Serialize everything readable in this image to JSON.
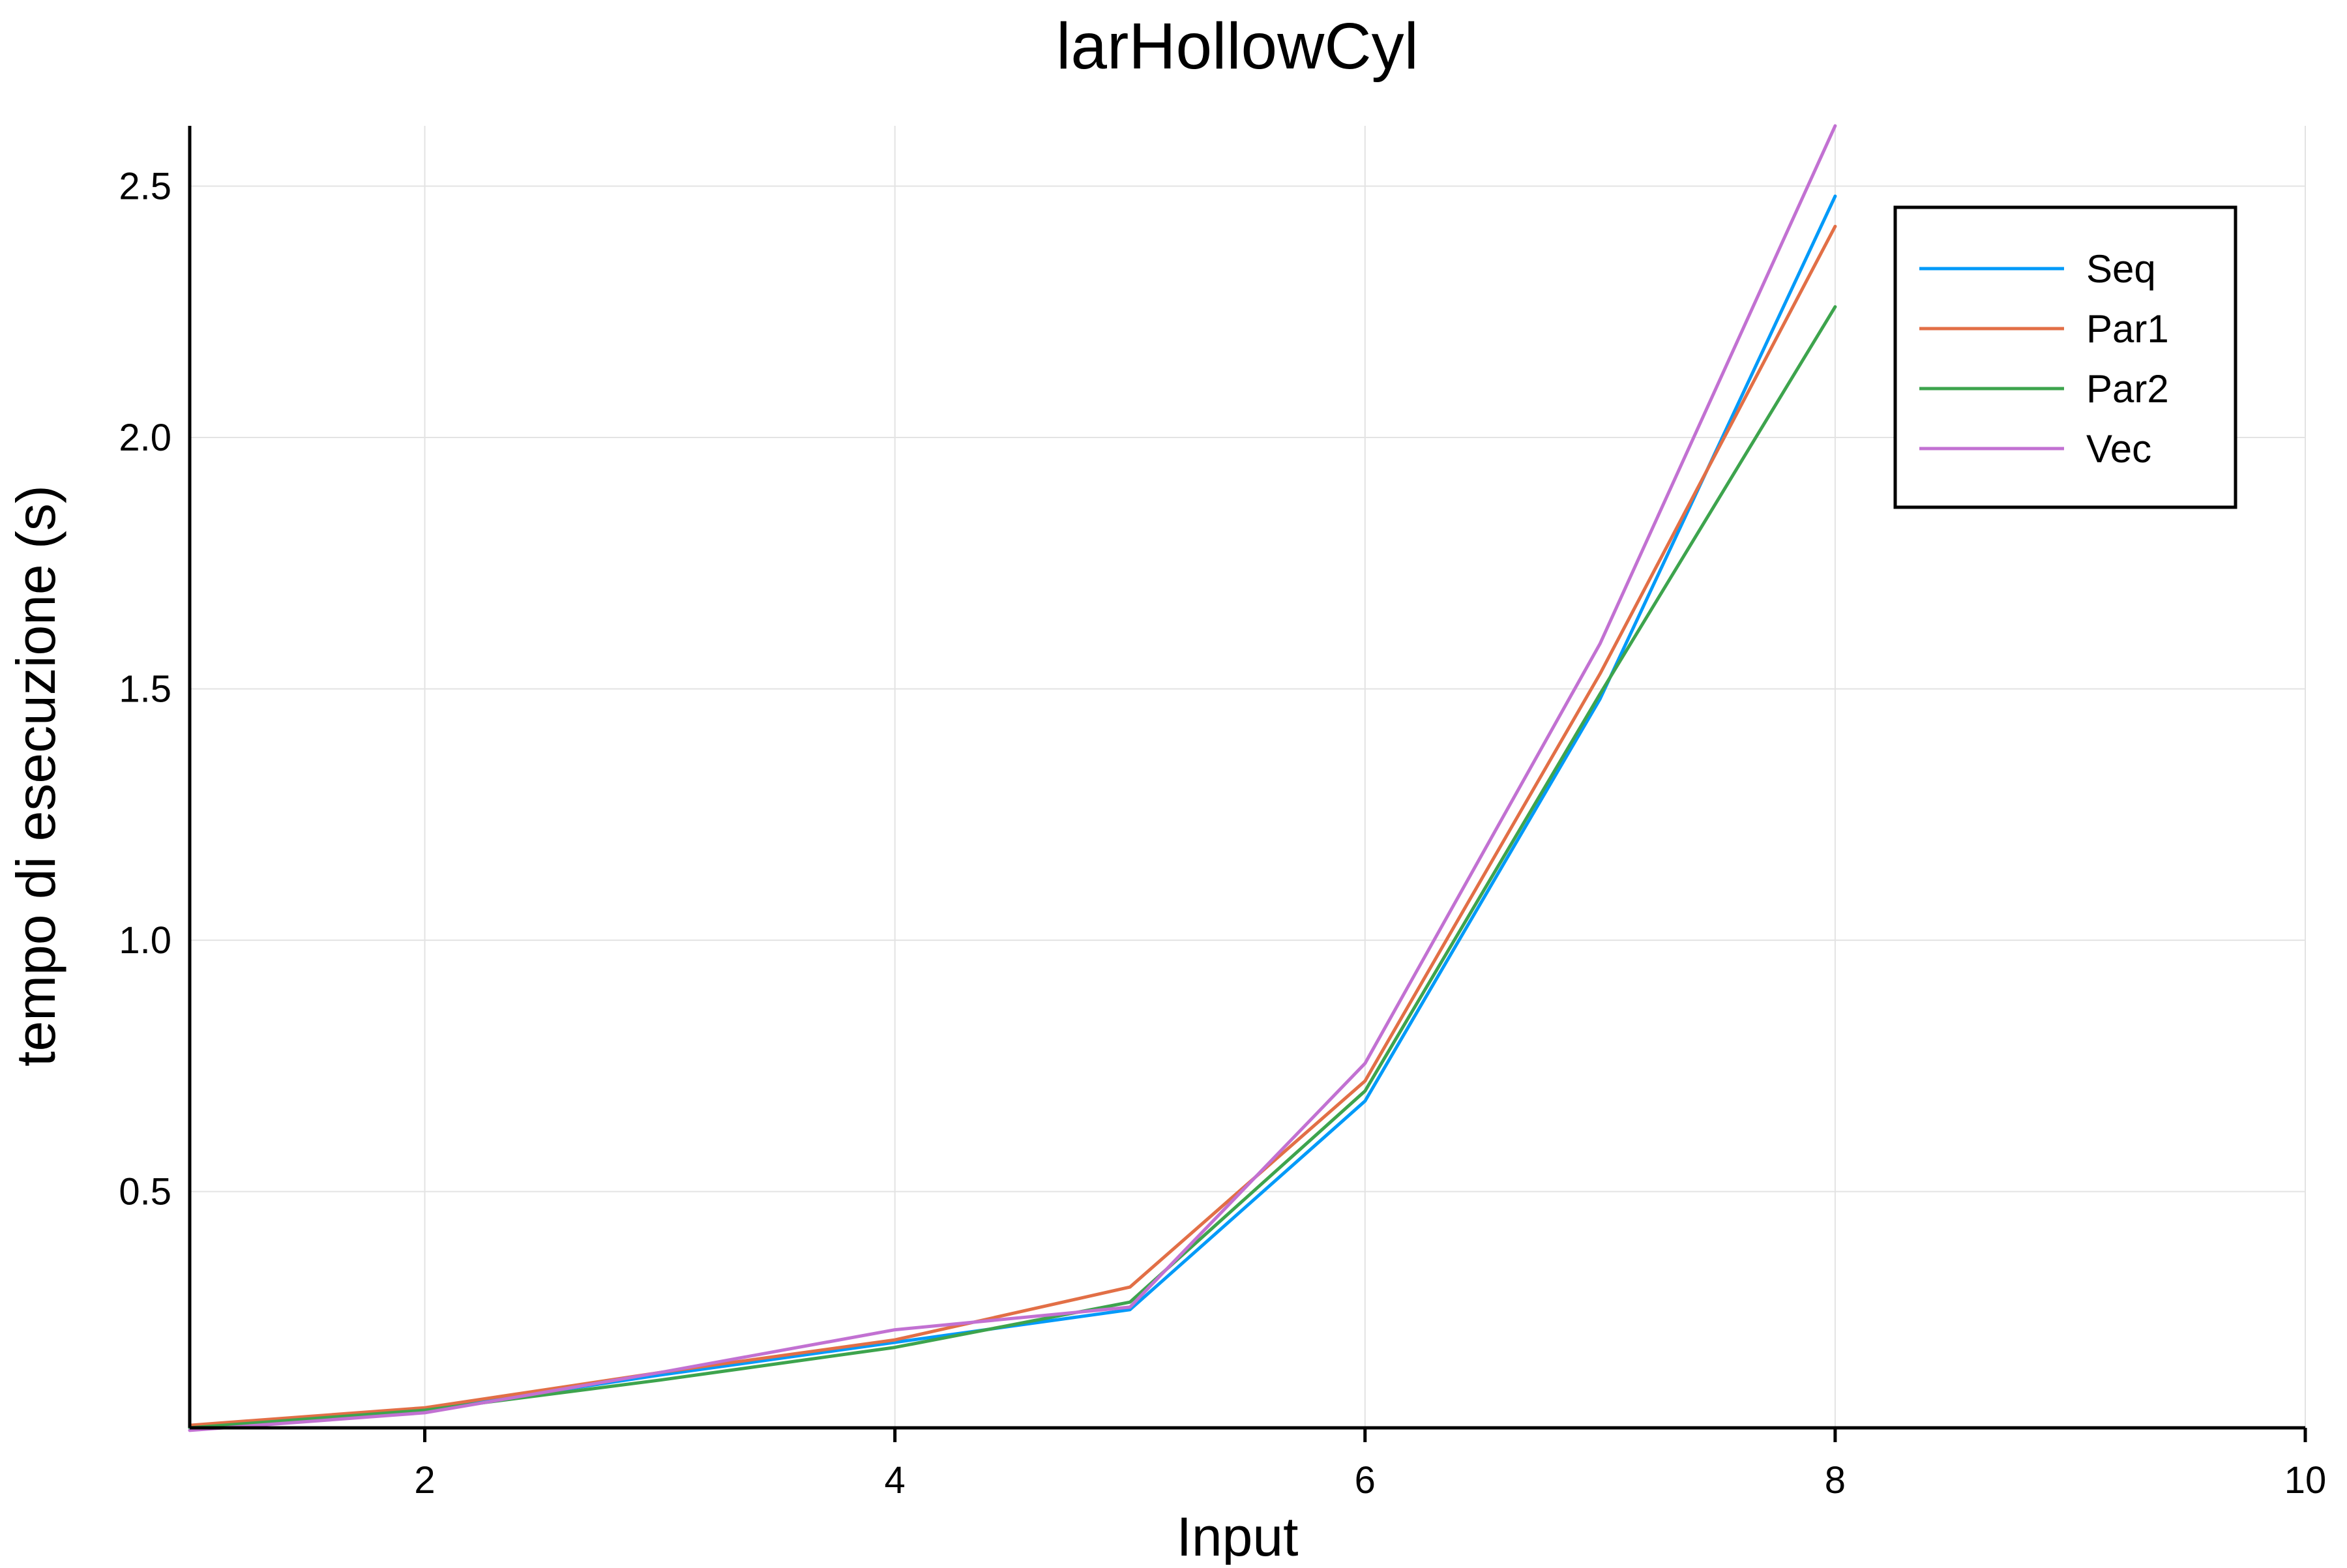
{
  "chart_data": {
    "type": "line",
    "title": "larHollowCyl",
    "xlabel": "Input",
    "ylabel": "tempo di esecuzione (s)",
    "xlim": [
      1,
      10
    ],
    "ylim": [
      0.03,
      2.62
    ],
    "xticks": [
      2,
      4,
      6,
      8,
      10
    ],
    "xtick_labels": [
      "2",
      "4",
      "6",
      "8",
      "10"
    ],
    "yticks": [
      0.5,
      1.0,
      1.5,
      2.0,
      2.5
    ],
    "ytick_labels": [
      "0.5",
      "1.0",
      "1.5",
      "2.0",
      "2.5"
    ],
    "grid": true,
    "legend_position": "top-right",
    "x": [
      1,
      2,
      3,
      4,
      5,
      6,
      7,
      8
    ],
    "series": [
      {
        "name": "Seq",
        "color": "#009af9",
        "values": [
          0.03,
          0.065,
          0.135,
          0.2,
          0.265,
          0.68,
          1.48,
          2.48
        ]
      },
      {
        "name": "Par1",
        "color": "#e26f46",
        "values": [
          0.035,
          0.07,
          0.14,
          0.205,
          0.31,
          0.72,
          1.53,
          2.42
        ]
      },
      {
        "name": "Par2",
        "color": "#3da44d",
        "values": [
          0.03,
          0.065,
          0.125,
          0.19,
          0.28,
          0.7,
          1.49,
          2.26
        ]
      },
      {
        "name": "Vec",
        "color": "#c271d2",
        "values": [
          0.025,
          0.06,
          0.14,
          0.225,
          0.27,
          0.755,
          1.59,
          2.62
        ]
      }
    ]
  }
}
